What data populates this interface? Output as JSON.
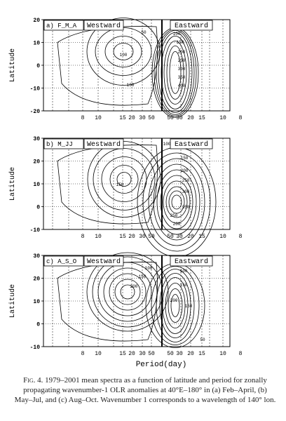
{
  "caption": {
    "label": "Fig. 4.",
    "text": "1979–2001 mean spectra as a function of latitude and period for zonally propagating wavenumber-1 OLR anomalies at 40°E–180° in (a) Feb–April, (b) May–Jul, and (c) Aug–Oct. Wavenumber 1 corresponds to a wavelength of 140° lon."
  },
  "chart_data": [
    {
      "type": "contour",
      "panel_label": "a) F_M_A",
      "left_label": "Westward",
      "right_label": "Eastward",
      "ylabel": "Latitude",
      "ylim": [
        -20,
        20
      ],
      "yticks": [
        "20",
        "10",
        "0",
        "-10",
        "-20"
      ],
      "period_ticks": [
        "8",
        "10",
        "15",
        "20",
        "30",
        "50",
        "50",
        "30",
        "20",
        "15",
        "10",
        "8"
      ],
      "contour_labels": [
        "50",
        "100",
        "100",
        "100",
        "150",
        "200",
        "250",
        "300",
        "350",
        "400"
      ]
    },
    {
      "type": "contour",
      "panel_label": "b) M_JJ",
      "left_label": "Westward",
      "right_label": "Eastward",
      "ylabel": "Latitude",
      "ylim": [
        -10,
        30
      ],
      "yticks": [
        "30",
        "20",
        "10",
        "0",
        "-10"
      ],
      "period_ticks": [
        "8",
        "10",
        "15",
        "20",
        "30",
        "50",
        "50",
        "30",
        "20",
        "15",
        "10",
        "8"
      ],
      "contour_labels": [
        "150",
        "150",
        "200",
        "250",
        "300",
        "350",
        "250",
        "200",
        "100"
      ]
    },
    {
      "type": "contour",
      "panel_label": "c) A_S_O",
      "left_label": "Westward",
      "right_label": "Eastward",
      "ylabel": "Latitude",
      "ylim": [
        -10,
        30
      ],
      "yticks": [
        "30",
        "20",
        "10",
        "0",
        "-10"
      ],
      "period_ticks": [
        "8",
        "10",
        "15",
        "20",
        "30",
        "50",
        "50",
        "30",
        "20",
        "15",
        "10",
        "8"
      ],
      "contour_labels": [
        "100",
        "150",
        "200",
        "100",
        "150",
        "200",
        "150",
        "50"
      ]
    }
  ],
  "xlabel": "Period(day)"
}
